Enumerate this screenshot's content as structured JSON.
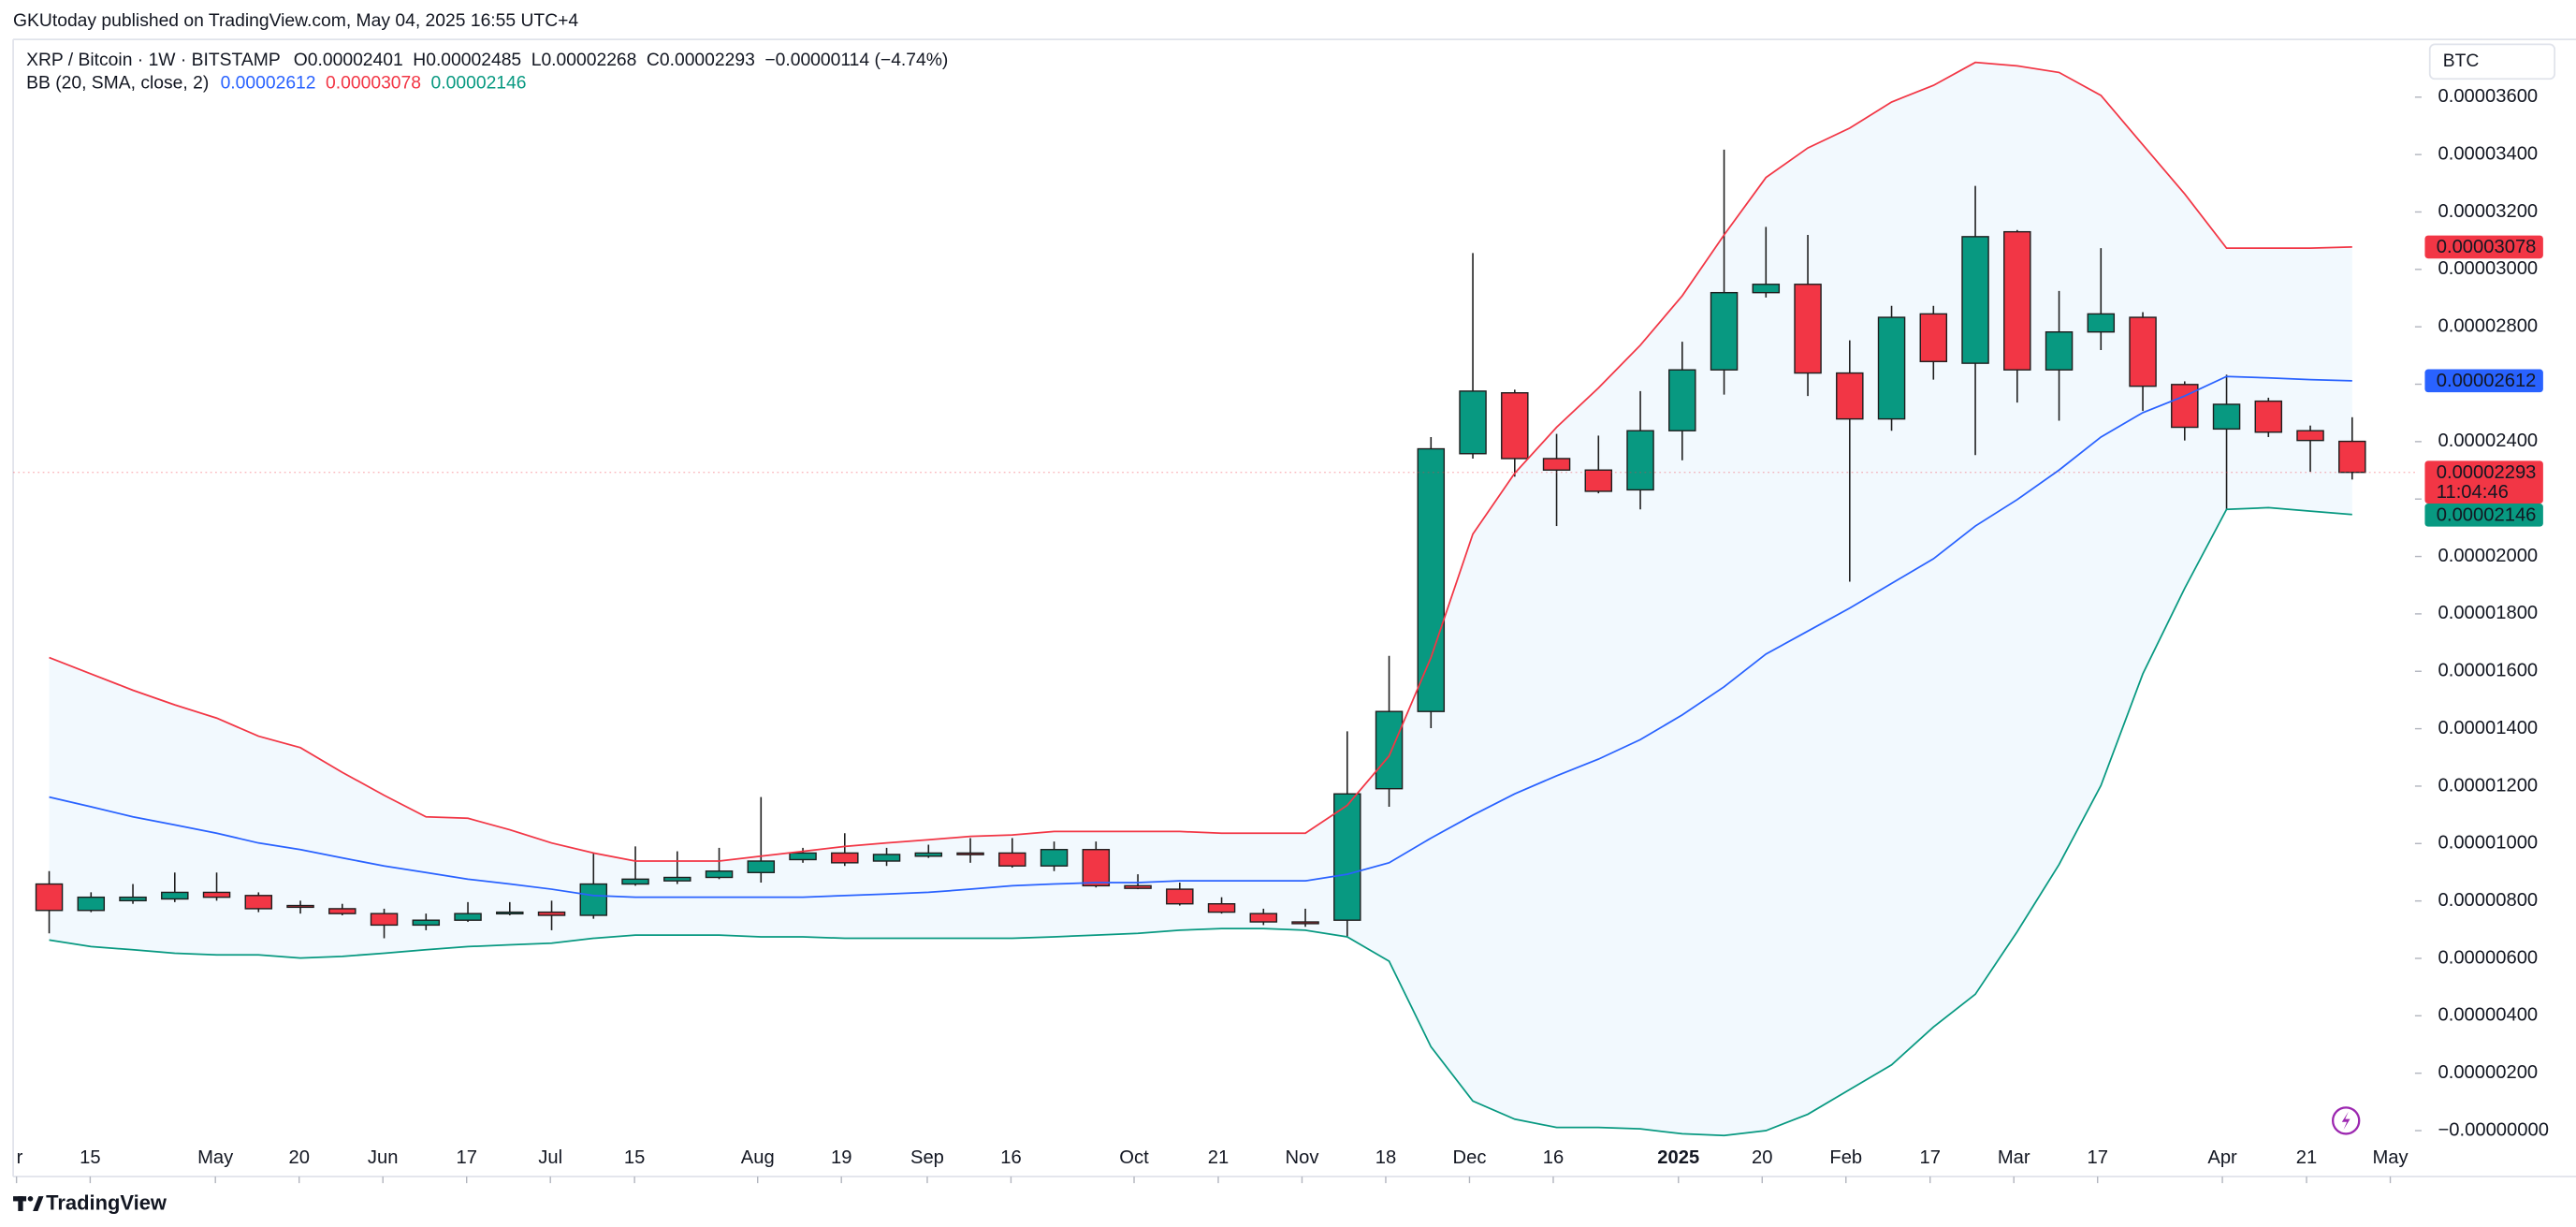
{
  "chart_data": {
    "type": "candlestick",
    "attribution": "GKUtoday published on TradingView.com, May 04, 2025 16:55 UTC+4",
    "title": "XRP / Bitcoin · 1W · BITSTAMP",
    "ohlc_header": [
      "O0.00002401",
      "H0.00002485",
      "L0.00002268",
      "C0.00002293",
      "−0.00000114 (−4.74%)"
    ],
    "currency": "BTC",
    "logo": "TradingView",
    "up_color": "#089981",
    "down_color": "#f23645",
    "candles": {
      "open": [
        8.59e-06,
        7.67e-06,
        8.01e-06,
        8.07e-06,
        8.3e-06,
        8.19e-06,
        7.84e-06,
        7.73e-06,
        7.56e-06,
        7.16e-06,
        7.33e-06,
        7.56e-06,
        7.61e-06,
        7.5e-06,
        8.59e-06,
        8.7e-06,
        8.82e-06,
        8.99e-06,
        9.44e-06,
        9.67e-06,
        9.39e-06,
        9.56e-06,
        9.67e-06,
        9.67e-06,
        9.22e-06,
        9.79e-06,
        8.53e-06,
        8.41e-06,
        7.9e-06,
        7.56e-06,
        7.27e-06,
        7.33e-06,
        1.191e-05,
        1.46e-05,
        2.358e-05,
        2.57e-05,
        2.341e-05,
        2.301e-05,
        2.232e-05,
        2.438e-05,
        2.65e-05,
        2.919e-05,
        2.948e-05,
        2.639e-05,
        2.479e-05,
        2.845e-05,
        2.673e-05,
        3.131e-05,
        2.65e-05,
        2.782e-05,
        2.833e-05,
        2.599e-05,
        2.444e-05,
        2.541e-05,
        2.438e-05,
        2.401e-05
      ],
      "high": [
        9.04e-06,
        8.3e-06,
        8.59e-06,
        8.99e-06,
        8.99e-06,
        8.3e-06,
        8.01e-06,
        7.9e-06,
        7.73e-06,
        7.56e-06,
        7.96e-06,
        7.96e-06,
        8.01e-06,
        9.67e-06,
        9.9e-06,
        9.73e-06,
        9.85e-06,
        1.162e-05,
        9.85e-06,
        1.036e-05,
        9.85e-06,
        9.96e-06,
        1.019e-05,
        1.019e-05,
        1.007e-05,
        1.007e-05,
        8.93e-06,
        8.64e-06,
        8.13e-06,
        7.73e-06,
        7.73e-06,
        1.391e-05,
        1.654e-05,
        2.416e-05,
        3.057e-05,
        2.581e-05,
        2.427e-05,
        2.421e-05,
        2.576e-05,
        2.748e-05,
        3.417e-05,
        3.148e-05,
        3.12e-05,
        2.753e-05,
        2.873e-05,
        2.873e-05,
        3.291e-05,
        3.137e-05,
        2.925e-05,
        3.074e-05,
        2.851e-05,
        2.61e-05,
        2.633e-05,
        2.553e-05,
        2.456e-05,
        2.485e-05
      ],
      "low": [
        6.87e-06,
        7.61e-06,
        7.9e-06,
        7.96e-06,
        8.01e-06,
        7.61e-06,
        7.56e-06,
        7.5e-06,
        6.7e-06,
        6.98e-06,
        7.27e-06,
        7.5e-06,
        6.98e-06,
        7.38e-06,
        8.53e-06,
        8.59e-06,
        8.76e-06,
        8.64e-06,
        9.33e-06,
        9.22e-06,
        9.22e-06,
        9.5e-06,
        9.33e-06,
        9.16e-06,
        9.04e-06,
        8.47e-06,
        8.41e-06,
        7.84e-06,
        7.56e-06,
        7.16e-06,
        7.1e-06,
        6.75e-06,
        1.128e-05,
        1.402e-05,
        2.341e-05,
        2.278e-05,
        2.106e-05,
        2.22e-05,
        2.164e-05,
        2.335e-05,
        2.564e-05,
        2.902e-05,
        2.559e-05,
        1.912e-05,
        2.438e-05,
        2.616e-05,
        2.353e-05,
        2.536e-05,
        2.473e-05,
        2.719e-05,
        2.507e-05,
        2.404e-05,
        2.164e-05,
        2.416e-05,
        2.295e-05,
        2.268e-05
      ],
      "close": [
        7.67e-06,
        8.13e-06,
        8.13e-06,
        8.3e-06,
        8.13e-06,
        7.73e-06,
        7.78e-06,
        7.56e-06,
        7.16e-06,
        7.33e-06,
        7.56e-06,
        7.61e-06,
        7.5e-06,
        8.59e-06,
        8.76e-06,
        8.82e-06,
        9.04e-06,
        9.39e-06,
        9.67e-06,
        9.33e-06,
        9.62e-06,
        9.67e-06,
        9.62e-06,
        9.22e-06,
        9.79e-06,
        8.53e-06,
        8.44e-06,
        7.9e-06,
        7.61e-06,
        7.27e-06,
        7.21e-06,
        1.173e-05,
        1.46e-05,
        2.375e-05,
        2.576e-05,
        2.341e-05,
        2.301e-05,
        2.227e-05,
        2.438e-05,
        2.65e-05,
        2.919e-05,
        2.948e-05,
        2.639e-05,
        2.479e-05,
        2.833e-05,
        2.679e-05,
        3.114e-05,
        2.65e-05,
        2.782e-05,
        2.845e-05,
        2.593e-05,
        2.45e-05,
        2.53e-05,
        2.433e-05,
        2.404e-05,
        2.293e-05
      ],
      "last_value_label": "0.00002293",
      "countdown": "11:04:46"
    },
    "indicator": {
      "name": "BB (20, SMA, close, 2)",
      "fill_color": "#2196f3",
      "lines": [
        {
          "color": "#2962ff",
          "last_value_label": "0.00002612",
          "values": [
            1.162e-05,
            1.128e-05,
            1.093e-05,
            1.065e-05,
            1.036e-05,
            1.002e-05,
            9.79e-06,
            9.5e-06,
            9.22e-06,
            8.99e-06,
            8.76e-06,
            8.59e-06,
            8.41e-06,
            8.19e-06,
            8.13e-06,
            8.13e-06,
            8.13e-06,
            8.13e-06,
            8.13e-06,
            8.19e-06,
            8.24e-06,
            8.3e-06,
            8.41e-06,
            8.53e-06,
            8.59e-06,
            8.64e-06,
            8.64e-06,
            8.7e-06,
            8.7e-06,
            8.7e-06,
            8.7e-06,
            8.93e-06,
            9.33e-06,
            1.019e-05,
            1.099e-05,
            1.173e-05,
            1.236e-05,
            1.294e-05,
            1.362e-05,
            1.448e-05,
            1.546e-05,
            1.66e-05,
            1.74e-05,
            1.82e-05,
            1.906e-05,
            1.992e-05,
            2.106e-05,
            2.198e-05,
            2.301e-05,
            2.416e-05,
            2.501e-05,
            2.559e-05,
            2.627e-05,
            2.622e-05,
            2.616e-05,
            2.612e-05
          ]
        },
        {
          "color": "#f23645",
          "last_value_label": "0.00003078",
          "values": [
            1.648e-05,
            1.591e-05,
            1.534e-05,
            1.483e-05,
            1.437e-05,
            1.374e-05,
            1.334e-05,
            1.248e-05,
            1.168e-05,
            1.093e-05,
            1.088e-05,
            1.048e-05,
            1.002e-05,
            9.67e-06,
            9.39e-06,
            9.39e-06,
            9.39e-06,
            9.56e-06,
            9.73e-06,
            9.9e-06,
            1.002e-05,
            1.013e-05,
            1.025e-05,
            1.03e-05,
            1.042e-05,
            1.042e-05,
            1.042e-05,
            1.042e-05,
            1.036e-05,
            1.036e-05,
            1.036e-05,
            1.133e-05,
            1.305e-05,
            1.648e-05,
            2.078e-05,
            2.29e-05,
            2.45e-05,
            2.587e-05,
            2.736e-05,
            2.908e-05,
            3.12e-05,
            3.32e-05,
            3.423e-05,
            3.492e-05,
            3.583e-05,
            3.641e-05,
            3.721e-05,
            3.709e-05,
            3.686e-05,
            3.606e-05,
            3.434e-05,
            3.263e-05,
            3.074e-05,
            3.074e-05,
            3.074e-05,
            3.078e-05
          ]
        },
        {
          "color": "#089981",
          "last_value_label": "0.00002146",
          "values": [
            6.64e-06,
            6.41e-06,
            6.3e-06,
            6.18e-06,
            6.12e-06,
            6.12e-06,
            6.01e-06,
            6.07e-06,
            6.18e-06,
            6.3e-06,
            6.41e-06,
            6.47e-06,
            6.53e-06,
            6.7e-06,
            6.81e-06,
            6.81e-06,
            6.81e-06,
            6.75e-06,
            6.75e-06,
            6.7e-06,
            6.7e-06,
            6.7e-06,
            6.7e-06,
            6.7e-06,
            6.75e-06,
            6.81e-06,
            6.87e-06,
            6.98e-06,
            7.04e-06,
            7.04e-06,
            6.98e-06,
            6.75e-06,
            5.9e-06,
            2.92e-06,
            1.03e-06,
            4e-07,
            1.1e-07,
            1.1e-07,
            6e-08,
            -1.1e-07,
            -1.7e-07,
            0,
            5.7e-07,
            1.43e-06,
            2.29e-06,
            3.61e-06,
            4.75e-06,
            6.93e-06,
            9.27e-06,
            1.202e-05,
            1.591e-05,
            1.889e-05,
            2.164e-05,
            2.17e-05,
            2.158e-05,
            2.146e-05
          ]
        }
      ]
    },
    "xlim": [
      -0.86,
      56.5
    ],
    "xticks": [
      {
        "value": -0.78,
        "label": "r"
      },
      {
        "value": 0.98,
        "label": "15"
      },
      {
        "value": 3.97,
        "label": "May"
      },
      {
        "value": 5.97,
        "label": "20"
      },
      {
        "value": 7.97,
        "label": "Jun"
      },
      {
        "value": 9.97,
        "label": "17"
      },
      {
        "value": 11.97,
        "label": "Jul"
      },
      {
        "value": 13.98,
        "label": "15"
      },
      {
        "value": 16.92,
        "label": "Aug"
      },
      {
        "value": 18.92,
        "label": "19"
      },
      {
        "value": 20.97,
        "label": "Sep"
      },
      {
        "value": 22.97,
        "label": "16"
      },
      {
        "value": 25.91,
        "label": "Oct"
      },
      {
        "value": 27.92,
        "label": "21"
      },
      {
        "value": 29.92,
        "label": "Nov"
      },
      {
        "value": 31.92,
        "label": "18"
      },
      {
        "value": 33.92,
        "label": "Dec"
      },
      {
        "value": 35.92,
        "label": "16"
      },
      {
        "value": 38.91,
        "label": "2025"
      },
      {
        "value": 40.91,
        "label": "20"
      },
      {
        "value": 42.91,
        "label": "Feb"
      },
      {
        "value": 44.92,
        "label": "17"
      },
      {
        "value": 46.92,
        "label": "Mar"
      },
      {
        "value": 48.92,
        "label": "17"
      },
      {
        "value": 51.9,
        "label": "Apr"
      },
      {
        "value": 53.91,
        "label": "21"
      },
      {
        "value": 55.91,
        "label": "May"
      }
    ],
    "ylim": [
      -1.6e-06,
      3.801e-05
    ],
    "yticks": [
      {
        "value": 3.6e-05,
        "label": "0.00003600"
      },
      {
        "value": 3.4e-05,
        "label": "0.00003400"
      },
      {
        "value": 3.2e-05,
        "label": "0.00003200"
      },
      {
        "value": 3e-05,
        "label": "0.00003000"
      },
      {
        "value": 2.8e-05,
        "label": "0.00002800"
      },
      {
        "value": 2.6e-05,
        "label": "0.00002600"
      },
      {
        "value": 2.4e-05,
        "label": "0.00002400"
      },
      {
        "value": 2.2e-05,
        "label": "0.00002200"
      },
      {
        "value": 2e-05,
        "label": "0.00002000"
      },
      {
        "value": 1.8e-05,
        "label": "0.00001800"
      },
      {
        "value": 1.6e-05,
        "label": "0.00001600"
      },
      {
        "value": 1.4e-05,
        "label": "0.00001400"
      },
      {
        "value": 1.2e-05,
        "label": "0.00001200"
      },
      {
        "value": 1e-05,
        "label": "0.00001000"
      },
      {
        "value": 8e-06,
        "label": "0.00000800"
      },
      {
        "value": 6e-06,
        "label": "0.00000600"
      },
      {
        "value": 4e-06,
        "label": "0.00000400"
      },
      {
        "value": 2e-06,
        "label": "0.00000200"
      },
      {
        "value": 0,
        "label": "−0.00000000"
      }
    ]
  }
}
